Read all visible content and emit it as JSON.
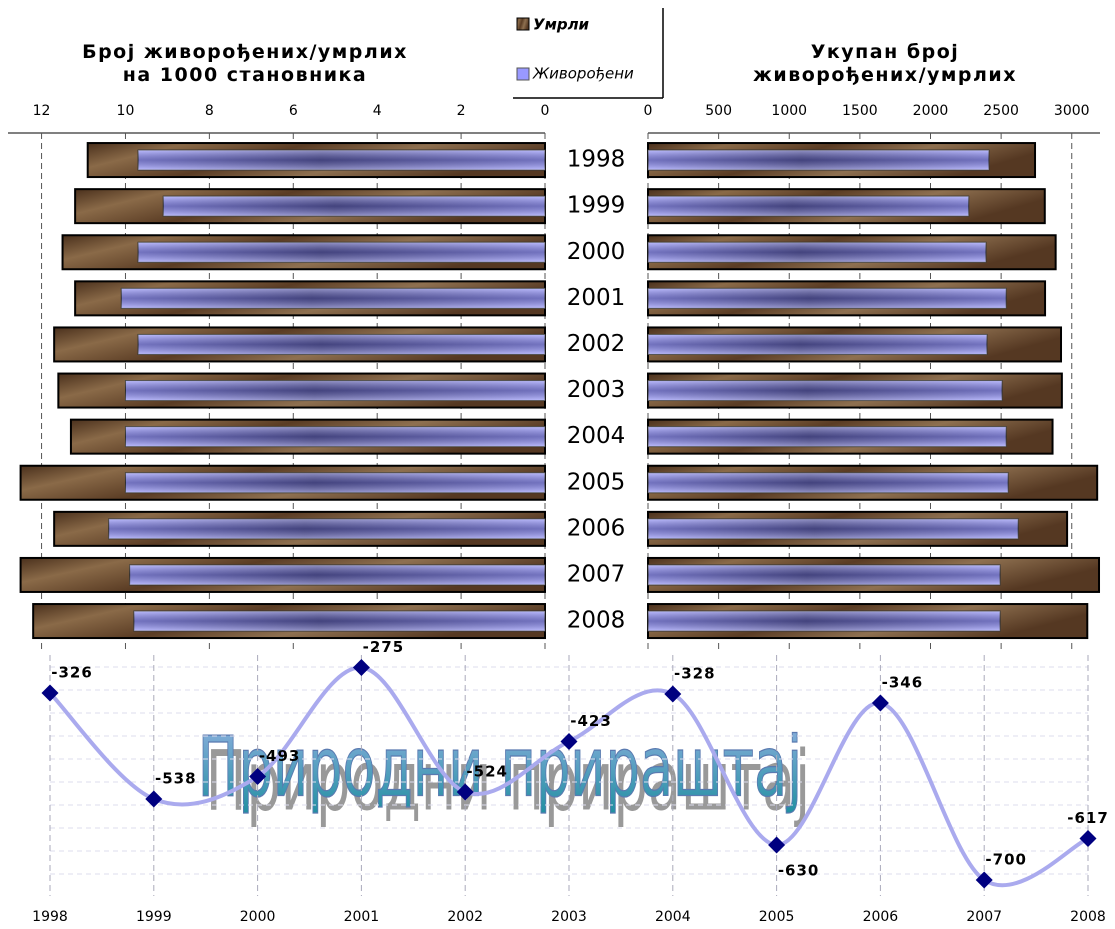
{
  "chart_data": [
    {
      "type": "bar",
      "orientation": "horizontal",
      "reversed": true,
      "title": "Број живорођених/умрлих на 1000 становника",
      "categories": [
        "1998",
        "1999",
        "2000",
        "2001",
        "2002",
        "2003",
        "2004",
        "2005",
        "2006",
        "2007",
        "2008"
      ],
      "series": [
        {
          "name": "Умрли",
          "color": "#6b4a2e",
          "values": [
            10.9,
            11.2,
            11.5,
            11.2,
            11.7,
            11.6,
            11.3,
            12.5,
            11.7,
            12.5,
            12.2
          ]
        },
        {
          "name": "Живорођени",
          "color": "#9999ff",
          "values": [
            9.7,
            9.1,
            9.7,
            10.1,
            9.7,
            10.0,
            10.0,
            10.0,
            10.4,
            9.9,
            9.8
          ]
        }
      ],
      "xlim": [
        0,
        12.8
      ],
      "xticks": [
        0,
        2,
        4,
        6,
        8,
        10,
        12
      ],
      "grid": true
    },
    {
      "type": "bar",
      "orientation": "horizontal",
      "title": "Укупан број живорођених/умрлих",
      "series": [
        {
          "name": "Умрли",
          "color": "#6b4a2e",
          "values": [
            2740,
            2809,
            2886,
            2811,
            2924,
            2930,
            2864,
            3180,
            2967,
            3193,
            3110
          ]
        },
        {
          "name": "Живорођени",
          "color": "#9999ff",
          "values": [
            2414,
            2271,
            2393,
            2536,
            2400,
            2507,
            2536,
            2550,
            2621,
            2493,
            2493
          ]
        }
      ],
      "xlim": [
        0,
        3200
      ],
      "xticks": [
        0,
        500,
        1000,
        1500,
        2000,
        2500,
        3000
      ],
      "grid": true
    },
    {
      "type": "line",
      "title": "Природни прираштај",
      "categories": [
        "1998",
        "1999",
        "2000",
        "2001",
        "2002",
        "2003",
        "2004",
        "2005",
        "2006",
        "2007",
        "2008"
      ],
      "values": [
        -326,
        -538,
        -493,
        -275,
        -524,
        -423,
        -328,
        -630,
        -346,
        -700,
        -617
      ],
      "color": "#aaaaee",
      "marker_color": "#000080",
      "ylim": [
        -720,
        -250
      ],
      "grid": true
    }
  ]
}
